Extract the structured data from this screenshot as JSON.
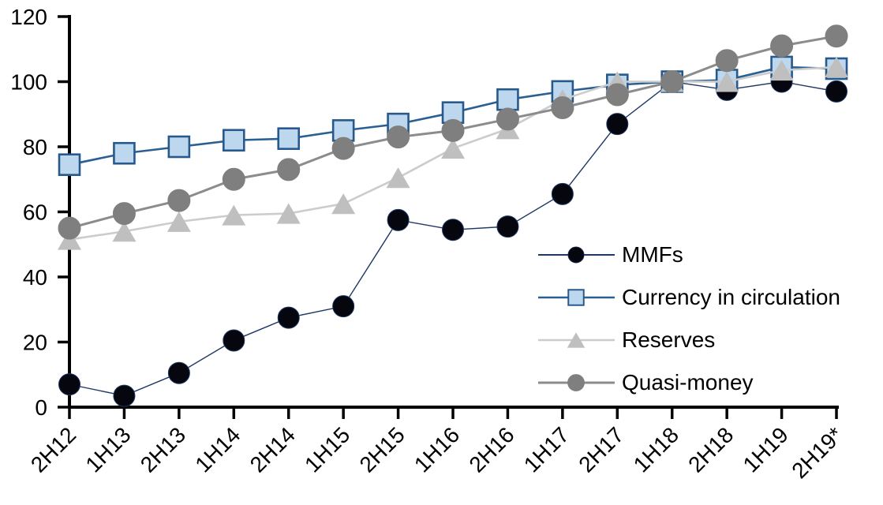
{
  "chart_data": {
    "type": "line",
    "title": "",
    "xlabel": "",
    "ylabel": "",
    "grid": false,
    "legend_position": "center-right",
    "categories": [
      "2H12",
      "1H13",
      "2H13",
      "1H14",
      "2H14",
      "1H15",
      "2H15",
      "1H16",
      "2H16",
      "1H17",
      "2H17",
      "1H18",
      "2H18",
      "1H19",
      "2H19*"
    ],
    "y_axis": {
      "min": 0,
      "max": 120,
      "step": 20,
      "tick_labels": [
        "0",
        "20",
        "40",
        "60",
        "80",
        "100",
        "120"
      ]
    },
    "series": [
      {
        "name": "MMFs",
        "marker": "circle",
        "fill": "#06060f",
        "stroke": "#1f3864",
        "line_color": "#1f3864",
        "line_width": 1.4,
        "marker_size": 27,
        "values": [
          7,
          3.5,
          10.5,
          20.5,
          27.5,
          31,
          57.5,
          54.5,
          55.5,
          65.5,
          87,
          100,
          97.5,
          100,
          97
        ]
      },
      {
        "name": "Currency in circulation",
        "marker": "square",
        "fill": "#bdd7ee",
        "stroke": "#27598a",
        "line_color": "#2a5f92",
        "line_width": 2.6,
        "marker_size": 26,
        "values": [
          74.5,
          78,
          80,
          82,
          82.5,
          85,
          87,
          90.5,
          94.5,
          97,
          99,
          100,
          100.5,
          104.5,
          104
        ]
      },
      {
        "name": "Reserves",
        "marker": "triangle",
        "fill": "#bfbfbf",
        "stroke": "#bfbfbf",
        "line_color": "#cccccc",
        "line_width": 2.6,
        "marker_size": 30,
        "values": [
          51.5,
          54,
          57,
          59,
          59.5,
          62.5,
          70.5,
          79.5,
          85.5,
          94.5,
          100,
          100,
          100,
          103.5,
          104.5
        ]
      },
      {
        "name": "Quasi-money",
        "marker": "circle",
        "fill": "#7f7f7f",
        "stroke": "#7f7f7f",
        "line_color": "#8c8c8c",
        "line_width": 3,
        "marker_size": 28,
        "values": [
          55,
          59.5,
          63.5,
          70,
          73,
          79.5,
          83,
          85,
          88.5,
          92,
          96,
          100,
          106.5,
          111,
          114
        ]
      }
    ]
  },
  "axis_color": "#000000",
  "label_color": "#000000"
}
